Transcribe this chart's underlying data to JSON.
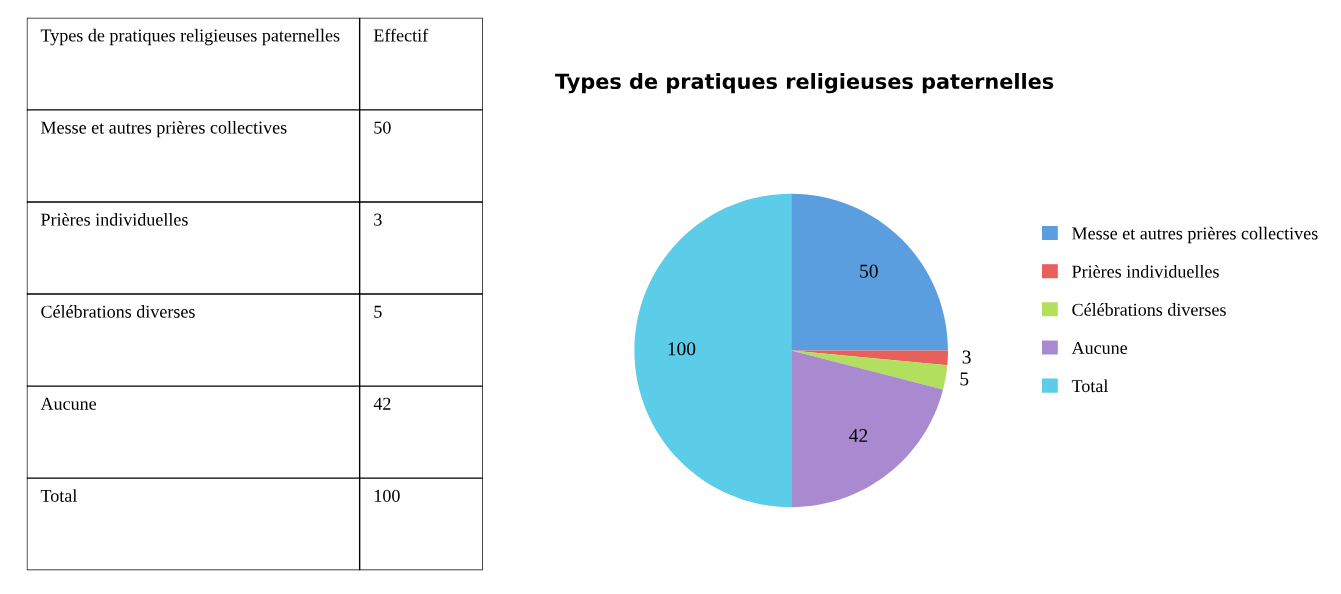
{
  "chart_data": [
    {
      "type": "other",
      "annotations": [
        "Types de pratiques religieuses paternelles",
        "Effectif"
      ],
      "categories": [
        "Messe et autres prières collectives",
        "Prières individuelles",
        "Célébrations diverses",
        "Aucune",
        "Total"
      ],
      "values": [
        50,
        3,
        5,
        42,
        100
      ],
      "data_labels": true
    },
    {
      "type": "pie",
      "title": "Types de pratiques religieuses paternelles",
      "categories": [
        "Messe et autres prières collectives",
        "Prières individuelles",
        "Célébrations diverses",
        "Aucune",
        "Total"
      ],
      "values": [
        50,
        3,
        5,
        42,
        100
      ],
      "colors": [
        "#5b9ee0",
        "#e8605a",
        "#b3df5e",
        "#a98ad0",
        "#5ccde8"
      ],
      "data_labels": true,
      "legend": "right"
    }
  ]
}
